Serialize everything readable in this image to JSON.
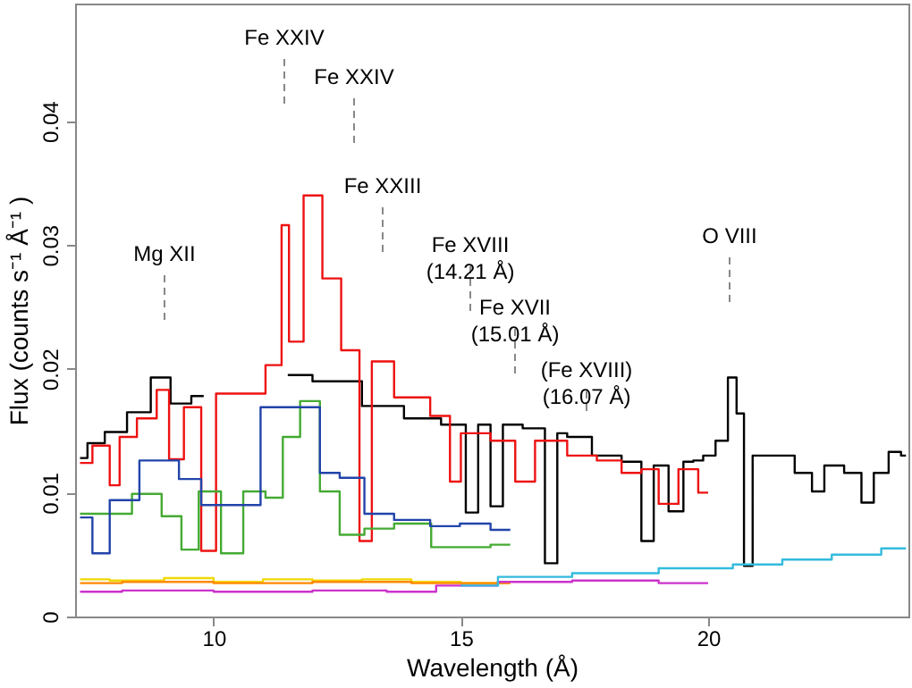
{
  "chart_data": {
    "type": "step",
    "xlabel": "Wavelength (Å)",
    "ylabel": "Flux (counts s⁻¹ Å⁻¹ )",
    "xlim": [
      7.2,
      24.05
    ],
    "ylim": [
      0,
      0.0495
    ],
    "xticks": [
      10,
      15,
      20
    ],
    "yticks": [
      0,
      0.01,
      0.02,
      0.03,
      0.04
    ],
    "grid": false,
    "marker": "none",
    "series": [
      {
        "color": "#000000",
        "x": [
          7.3,
          7.6,
          8.0,
          8.5,
          8.96,
          9.3,
          9.8,
          10.5,
          11.5,
          12.5,
          13.5,
          14.2,
          15.0,
          15.2,
          15.5,
          15.7,
          16.0,
          16.5,
          16.9,
          17.0,
          17.3,
          18.0,
          18.5,
          18.8,
          19.0,
          19.4,
          19.6,
          19.8,
          20.0,
          20.3,
          20.5,
          20.65,
          20.8,
          21.0,
          21.5,
          22.0,
          22.2,
          22.5,
          23.0,
          23.2,
          23.5,
          23.8,
          24.0
        ],
        "values": [
          0.0128,
          0.014,
          0.0149,
          0.0165,
          0.0193,
          0.0172,
          0.0178,
          null,
          0.0195,
          0.019,
          0.017,
          0.016,
          0.0155,
          0.0084,
          0.0155,
          0.0089,
          0.0155,
          0.0152,
          0.0043,
          0.0148,
          0.0145,
          0.013,
          0.0125,
          0.0061,
          0.0122,
          0.0085,
          0.0125,
          0.0126,
          0.013,
          0.0142,
          0.0193,
          0.0164,
          0.0041,
          0.013,
          0.013,
          0.0116,
          0.0101,
          0.0122,
          0.0116,
          0.0092,
          0.0116,
          0.0133,
          0.013
        ]
      },
      {
        "color": "#ee1111",
        "x": [
          7.3,
          7.8,
          8.0,
          8.2,
          8.7,
          9.0,
          9.2,
          9.6,
          9.9,
          10.2,
          10.8,
          11.3,
          11.45,
          11.6,
          12.04,
          12.36,
          12.8,
          13.1,
          13.3,
          14.0,
          14.76,
          14.8,
          15.2,
          16.0,
          16.2,
          16.8,
          17.5,
          18.0,
          18.5,
          18.8,
          19.2,
          19.6,
          20.0
        ],
        "values": [
          0.0124,
          0.0138,
          0.0106,
          0.0145,
          0.016,
          0.0183,
          0.0127,
          0.0169,
          0.0053,
          0.018,
          0.018,
          0.0203,
          0.0316,
          0.0222,
          0.034,
          0.0273,
          0.0215,
          0.0061,
          0.0206,
          0.0177,
          0.0162,
          0.0109,
          0.0148,
          0.0142,
          0.0109,
          0.0142,
          0.013,
          0.0126,
          0.0116,
          0.0119,
          0.0091,
          0.0119,
          0.01
        ]
      },
      {
        "color": "#44aa33",
        "x": [
          7.3,
          8.0,
          8.7,
          9.2,
          9.5,
          9.9,
          10.4,
          10.8,
          11.3,
          11.5,
          12.0,
          12.3,
          12.8,
          13.3,
          14.0,
          14.8,
          15.2,
          16.0
        ],
        "values": [
          0.0083,
          0.0083,
          0.0099,
          0.0081,
          0.0054,
          0.0101,
          0.0051,
          0.0101,
          0.0096,
          0.0145,
          0.0174,
          0.0101,
          0.0066,
          0.0071,
          0.0075,
          0.0056,
          0.0056,
          0.0058
        ]
      },
      {
        "color": "#2244aa",
        "x": [
          7.3,
          7.8,
          8.0,
          9.0,
          9.6,
          9.9,
          12.0,
          12.3,
          12.8,
          13.3,
          14.0,
          14.76,
          15.2,
          16.0
        ],
        "values": [
          0.008,
          0.0051,
          0.0094,
          0.0126,
          0.0111,
          0.009,
          0.0169,
          0.0116,
          0.0112,
          0.0083,
          0.0078,
          0.0073,
          0.0075,
          0.007
        ]
      },
      {
        "color": "#f0d800",
        "x": [
          7.3,
          8.5,
          9.5,
          10.5,
          11.5,
          12.5,
          13.5,
          14.5,
          15.5,
          16.0
        ],
        "values": [
          0.003,
          0.0029,
          0.0031,
          0.0028,
          0.003,
          0.0029,
          0.003,
          0.0028,
          0.0027,
          0.0027
        ]
      },
      {
        "color": "#ff8800",
        "x": [
          7.3,
          9.0,
          11.0,
          13.0,
          15.0,
          16.0
        ],
        "values": [
          0.0027,
          0.0028,
          0.0027,
          0.0028,
          0.0027,
          0.0027
        ]
      },
      {
        "color": "#cc33cc",
        "x": [
          7.3,
          9.0,
          11.0,
          13.0,
          14.0,
          15.0,
          16.5,
          18.0,
          20.0
        ],
        "values": [
          0.002,
          0.0021,
          0.002,
          0.0021,
          0.002,
          0.0025,
          0.0028,
          0.0029,
          0.0027
        ]
      },
      {
        "color": "#33bbdd",
        "x": [
          15.0,
          16.5,
          18.0,
          20.0,
          21.0,
          22.0,
          23.0,
          24.0
        ],
        "values": [
          0.0025,
          0.0032,
          0.0035,
          0.0039,
          0.0042,
          0.0046,
          0.005,
          0.0055
        ]
      }
    ],
    "annotations": [
      "Mg XII",
      "Fe XXIV",
      "Fe XXIV",
      "Fe XXIII",
      "Fe XVIII\n(14.21 Å)",
      "Fe XVII\n(15.01 Å)",
      "(Fe XVIII)\n(16.07 Å)",
      "O VIII"
    ]
  }
}
